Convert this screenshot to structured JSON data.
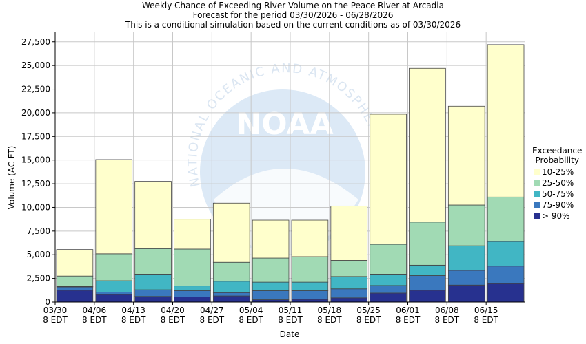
{
  "title_lines": [
    "Weekly Chance of Exceeding River Volume on the Peace River at Arcadia",
    "Forecast for the period 03/30/2026 - 06/28/2026",
    "This is a conditional simulation based on the current conditions as of 03/30/2026"
  ],
  "watermark": {
    "logo_text": "NOAA",
    "ring_text": "NATIONAL OCEANIC AND ATMOSPHERIC ADMINISTRATION"
  },
  "chart_data": {
    "type": "bar",
    "stacked": true,
    "xlabel": "Date",
    "ylabel": "Volume (AC-FT)",
    "ylim": [
      0,
      28500
    ],
    "yticks": [
      0,
      2500,
      5000,
      7500,
      10000,
      12500,
      15000,
      17500,
      20000,
      22500,
      25000,
      27500
    ],
    "ytick_labels": [
      "0",
      "2,500",
      "5,000",
      "7,500",
      "10,000",
      "12,500",
      "15,000",
      "17,500",
      "20,000",
      "22,500",
      "25,000",
      "27,500"
    ],
    "grid": true,
    "legend_position": "right",
    "x_ticks": [
      [
        "03/30",
        "8 EDT"
      ],
      [
        "04/06",
        "8 EDT"
      ],
      [
        "04/13",
        "8 EDT"
      ],
      [
        "04/20",
        "8 EDT"
      ],
      [
        "04/27",
        "8 EDT"
      ],
      [
        "05/04",
        "8 EDT"
      ],
      [
        "05/11",
        "8 EDT"
      ],
      [
        "05/18",
        "8 EDT"
      ],
      [
        "05/25",
        "8 EDT"
      ],
      [
        "06/01",
        "8 EDT"
      ],
      [
        "06/08",
        "8 EDT"
      ],
      [
        "06/15",
        "8 EDT"
      ]
    ],
    "legend_title": [
      "Exceedance",
      "Probability"
    ],
    "series": [
      {
        "name": "> 90%",
        "color": "#27318f",
        "values": [
          1250,
          800,
          600,
          550,
          650,
          250,
          300,
          450,
          950,
          1250,
          1800,
          1950
        ]
      },
      {
        "name": "75-90%",
        "color": "#3a78be",
        "values": [
          350,
          250,
          700,
          650,
          350,
          950,
          900,
          950,
          800,
          1550,
          1550,
          1850
        ]
      },
      {
        "name": "50-75%",
        "color": "#41b6c4",
        "values": [
          50,
          1200,
          1650,
          500,
          1200,
          900,
          900,
          1300,
          1200,
          1100,
          2600,
          2600
        ]
      },
      {
        "name": "25-50%",
        "color": "#a1dab4",
        "values": [
          1100,
          2850,
          2700,
          3900,
          2000,
          2550,
          2700,
          1700,
          3150,
          4550,
          4300,
          4700
        ]
      },
      {
        "name": "10-25%",
        "color": "#ffffcc",
        "values": [
          2800,
          9950,
          7100,
          3150,
          6250,
          4000,
          3850,
          5750,
          13750,
          16250,
          10450,
          16100
        ]
      }
    ]
  }
}
